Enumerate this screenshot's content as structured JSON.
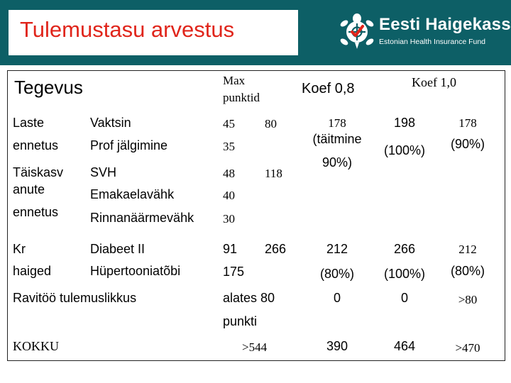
{
  "title": "Tulemustasu arvestus",
  "logo": {
    "name": "Eesti Haigekassa",
    "subtitle": "Estonian Health Insurance Fund",
    "icon": "turtle-logo-icon",
    "color_bg": "#0d5f66",
    "color_accent": "#e0251b"
  },
  "table": {
    "headers": {
      "tegevus": "Tegevus",
      "max_line1": "Max",
      "max_line2": "punktid",
      "koef08": "Koef 0,8",
      "koef10": "Koef 1,0"
    },
    "labels": {
      "laste": "Laste",
      "ennetus": "ennetus",
      "taiskasv1": "Täiskasv",
      "taiskasv2": "anute",
      "taiskasv3": "ennetus",
      "kr": "Kr",
      "haiged": "haiged",
      "ravitoo": "Ravitöö tulemuslikkus",
      "kokku": "KOKKU"
    },
    "items": {
      "vaktsin": "Vaktsin",
      "prof": "Prof jälgimine",
      "svh": "SVH",
      "emaka": "Emakaelavähk",
      "rinnan": "Rinnanäärmevähk",
      "diabeet": "Diabeet II",
      "hypert": "Hüpertooniatõbi"
    },
    "points": {
      "vaktsin": "45",
      "prof": "35",
      "svh": "48",
      "emaka": "40",
      "rinnan": "30",
      "diabeet": "91",
      "hypert": "175",
      "alates1": "alates 80",
      "alates2": "punkti",
      "kokku": ">544"
    },
    "subtotals": {
      "laste": "80",
      "taiskasv": "118",
      "kr": "266"
    },
    "koef08": {
      "laste_1": "178",
      "laste_2": "(täitmine",
      "laste_3": "90%)",
      "kr_1": "212",
      "kr_2": "(80%)",
      "ravi": "0",
      "kokku": "390"
    },
    "koef10a": {
      "laste_1": "198",
      "laste_2": "(100%)",
      "kr_1": "266",
      "kr_2": "(100%)",
      "ravi": "0",
      "kokku": "464"
    },
    "koef10b": {
      "laste_1": "178",
      "laste_2": "(90%)",
      "kr_1": "212",
      "kr_2": "(80%)",
      "ravi": ">80",
      "kokku": ">470"
    }
  }
}
